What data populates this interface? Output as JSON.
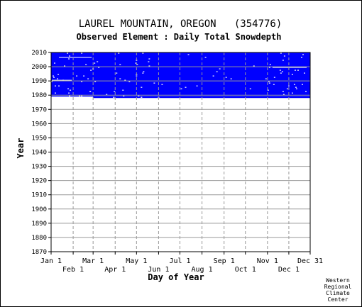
{
  "chart_data": {
    "type": "heatmap",
    "title": "LAUREL MOUNTAIN, OREGON   (354776)",
    "subtitle": "Observed Element : Daily Total Snowdepth",
    "xlabel": "Day of Year",
    "ylabel": "Year",
    "ylim": [
      1870,
      2010
    ],
    "y_ticks": [
      1870,
      1880,
      1890,
      1900,
      1910,
      1920,
      1930,
      1940,
      1950,
      1960,
      1970,
      1980,
      1990,
      2000,
      2010
    ],
    "x_ticks_upper": [
      {
        "label": "Jan 1",
        "day": 1
      },
      {
        "label": "Mar 1",
        "day": 60
      },
      {
        "label": "May 1",
        "day": 121
      },
      {
        "label": "Jul 1",
        "day": 182
      },
      {
        "label": "Sep 1",
        "day": 244
      },
      {
        "label": "Nov 1",
        "day": 305
      },
      {
        "label": "Dec 31",
        "day": 365
      }
    ],
    "x_ticks_lower": [
      {
        "label": "Feb 1",
        "day": 32
      },
      {
        "label": "Apr 1",
        "day": 91
      },
      {
        "label": "Jun 1",
        "day": 152
      },
      {
        "label": "Aug 1",
        "day": 213
      },
      {
        "label": "Oct 1",
        "day": 274
      },
      {
        "label": "Dec 1",
        "day": 335
      }
    ],
    "series": [
      {
        "years": [
          1978,
          2010
        ],
        "days": [
          1,
          365
        ],
        "partial_first_year": {
          "year": 1978,
          "start_day": 60
        },
        "fill_color": "#0000ff"
      }
    ],
    "grid": true,
    "legend": "none"
  },
  "colors": {
    "data": "#0000ff",
    "gap": "#ffffff",
    "grid": "#999999",
    "axis": "#000000"
  },
  "credit": [
    "Western",
    "Regional",
    "Climate",
    "Center"
  ]
}
